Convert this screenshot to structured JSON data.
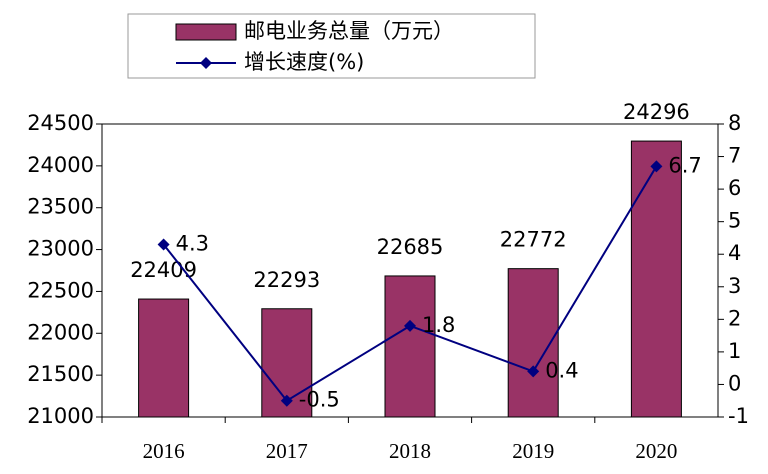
{
  "chart_data": {
    "type": "bar",
    "categories": [
      "2016",
      "2017",
      "2018",
      "2019",
      "2020"
    ],
    "series": [
      {
        "name": "邮电业务总量（万元）",
        "type": "bar",
        "color": "#993366",
        "values": [
          22409,
          22293,
          22685,
          22772,
          24296
        ]
      },
      {
        "name": "增长速度(%)",
        "type": "line",
        "axis": "y2",
        "color": "#000080",
        "values": [
          4.3,
          -0.5,
          1.8,
          0.4,
          6.7
        ]
      }
    ],
    "ylim": [
      21000,
      24500
    ],
    "yticks": [
      21000,
      21500,
      22000,
      22500,
      23000,
      23500,
      24000,
      24500
    ],
    "y2lim": [
      -1,
      8
    ],
    "y2ticks": [
      -1,
      0,
      1,
      2,
      3,
      4,
      5,
      6,
      7,
      8
    ],
    "legend": "top"
  }
}
